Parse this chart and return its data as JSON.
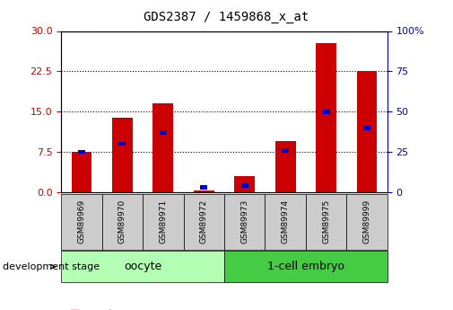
{
  "title": "GDS2387 / 1459868_x_at",
  "samples": [
    "GSM89969",
    "GSM89970",
    "GSM89971",
    "GSM89972",
    "GSM89973",
    "GSM89974",
    "GSM89975",
    "GSM89999"
  ],
  "count_values": [
    7.5,
    13.8,
    16.5,
    0.3,
    3.0,
    9.5,
    27.8,
    22.5
  ],
  "percentile_values": [
    25,
    30,
    37,
    3,
    4,
    26,
    50,
    40
  ],
  "groups": [
    {
      "label": "oocyte",
      "start": 0,
      "end": 3,
      "color": "#b3ffb3"
    },
    {
      "label": "1-cell embryo",
      "start": 4,
      "end": 7,
      "color": "#44cc44"
    }
  ],
  "left_yticks": [
    0,
    7.5,
    15,
    22.5,
    30
  ],
  "right_yticks": [
    0,
    25,
    50,
    75,
    100
  ],
  "left_tick_color": "#cc0000",
  "right_tick_color": "#0000cc",
  "bar_color": "#cc0000",
  "percentile_color": "#0000cc",
  "bar_width": 0.5,
  "background_color": "#ffffff",
  "grid_color": "#000000",
  "sample_box_color": "#cccccc",
  "legend_count_color": "#cc0000",
  "legend_percentile_color": "#0000cc",
  "group_label_fontsize": 9,
  "title_fontsize": 10,
  "tick_fontsize": 8,
  "sample_fontsize": 6.5,
  "legend_fontsize": 7.5,
  "dev_stage_fontsize": 8
}
